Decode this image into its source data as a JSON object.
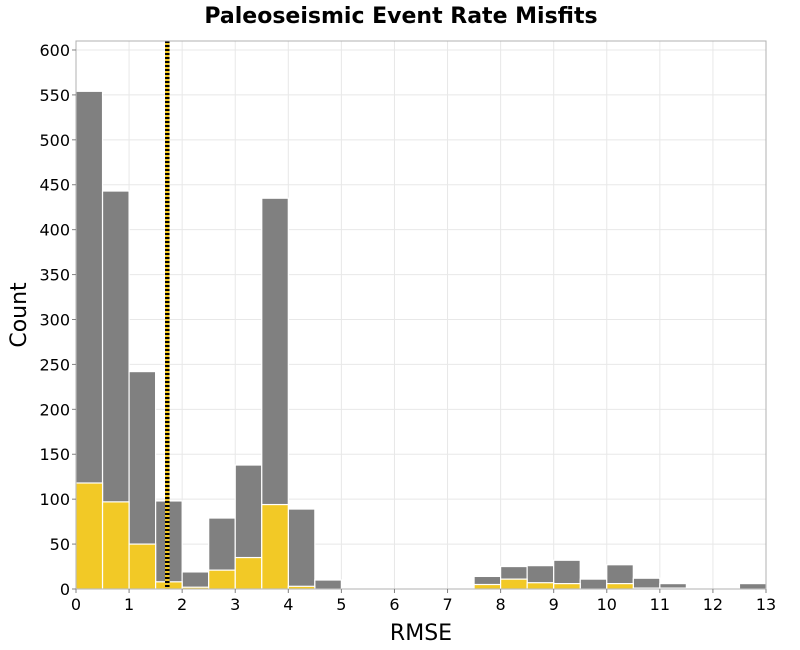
{
  "chart_data": {
    "type": "bar",
    "title": "Paleoseismic Event Rate Misfits",
    "xlabel": "RMSE",
    "ylabel": "Count",
    "xlim": [
      0,
      13
    ],
    "ylim": [
      0,
      610
    ],
    "x_ticks": [
      0,
      1,
      2,
      3,
      4,
      5,
      6,
      7,
      8,
      9,
      10,
      11,
      12,
      13
    ],
    "y_ticks": [
      0,
      50,
      100,
      150,
      200,
      250,
      300,
      350,
      400,
      450,
      500,
      550,
      600
    ],
    "grid": true,
    "bin_width": 0.5,
    "bin_starts": [
      0,
      0.5,
      1,
      1.5,
      2,
      2.5,
      3,
      3.5,
      4,
      4.5,
      5,
      5.5,
      6,
      6.5,
      7,
      7.5,
      8,
      8.5,
      9,
      9.5,
      10,
      10.5,
      11,
      11.5,
      12,
      12.5
    ],
    "series": [
      {
        "color": "#808080",
        "values": [
          554,
          443,
          242,
          98,
          19,
          79,
          138,
          435,
          89,
          10,
          0,
          0,
          0,
          0,
          0,
          14,
          25,
          26,
          32,
          11,
          27,
          12,
          6,
          0,
          0,
          6
        ]
      },
      {
        "color": "#f2c926",
        "values": [
          118,
          97,
          50,
          8,
          2,
          21,
          35,
          94,
          3,
          0,
          0,
          0,
          0,
          0,
          0,
          5,
          11,
          7,
          6,
          0,
          6,
          1,
          1,
          0,
          0,
          0
        ]
      }
    ],
    "reference_lines": [
      {
        "x": 1.72,
        "color_a": "#000000",
        "color_b": "#f2c926",
        "style": "dotted"
      }
    ]
  }
}
